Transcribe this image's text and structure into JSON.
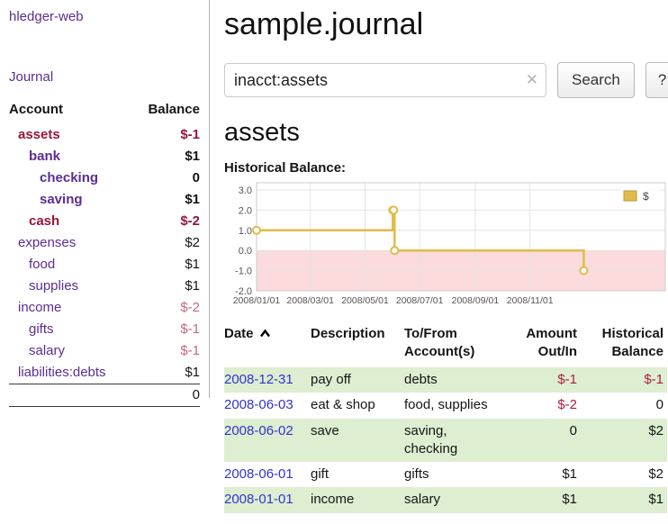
{
  "app": {
    "title": "hledger-web",
    "nav_journal": "Journal"
  },
  "sidebar": {
    "account_header": "Account",
    "balance_header": "Balance",
    "accounts": [
      {
        "name": "assets",
        "balance": "$-1",
        "indent": 0,
        "bold": true,
        "name_negative": true,
        "balance_color": "negative"
      },
      {
        "name": "bank",
        "balance": "$1",
        "indent": 1,
        "bold": true,
        "name_negative": false,
        "balance_color": "normal"
      },
      {
        "name": "checking",
        "balance": "0",
        "indent": 2,
        "bold": true,
        "name_negative": false,
        "balance_color": "normal"
      },
      {
        "name": "saving",
        "balance": "$1",
        "indent": 2,
        "bold": true,
        "name_negative": false,
        "balance_color": "normal"
      },
      {
        "name": "cash",
        "balance": "$-2",
        "indent": 1,
        "bold": true,
        "name_negative": true,
        "balance_color": "negative"
      },
      {
        "name": "expenses",
        "balance": "$2",
        "indent": 0,
        "bold": false,
        "name_negative": false,
        "balance_color": "normal"
      },
      {
        "name": "food",
        "balance": "$1",
        "indent": 1,
        "bold": false,
        "name_negative": false,
        "balance_color": "normal"
      },
      {
        "name": "supplies",
        "balance": "$1",
        "indent": 1,
        "bold": false,
        "name_negative": false,
        "balance_color": "normal"
      },
      {
        "name": "income",
        "balance": "$-2",
        "indent": 0,
        "bold": false,
        "name_negative": false,
        "balance_color": "negative_light"
      },
      {
        "name": "gifts",
        "balance": "$-1",
        "indent": 1,
        "bold": false,
        "name_negative": false,
        "balance_color": "negative_light"
      },
      {
        "name": "salary",
        "balance": "$-1",
        "indent": 1,
        "bold": false,
        "name_negative": false,
        "balance_color": "negative_light"
      },
      {
        "name": "liabilities:debts",
        "balance": "$1",
        "indent": 0,
        "bold": false,
        "name_negative": false,
        "balance_color": "normal"
      }
    ],
    "total": "0"
  },
  "main": {
    "title": "sample.journal",
    "account_heading": "assets"
  },
  "search": {
    "value": "inacct:assets",
    "placeholder": "",
    "clear_glyph": "✕",
    "button_label": "Search",
    "help_label": "?"
  },
  "chart_data": {
    "type": "line",
    "step": true,
    "title": "Historical Balance:",
    "xlim": [
      "2008-01-01",
      "2009-04-01"
    ],
    "ylim": [
      -2,
      3
    ],
    "y_ticks": [
      "3.0",
      "2.0",
      "1.0",
      "0.0",
      "-1.0",
      "-2.0"
    ],
    "x_ticks": [
      "2008/01/01",
      "2008/03/01",
      "2008/05/01",
      "2008/07/01",
      "2008/09/01",
      "2008/11/01"
    ],
    "grid": true,
    "legend_position": "top-right",
    "negative_region_fill": "#fbdbdb",
    "series": [
      {
        "name": "$",
        "color": "#e2bb49",
        "points": [
          [
            "2008-01-01",
            1
          ],
          [
            "2008-06-01",
            2
          ],
          [
            "2008-06-02",
            2
          ],
          [
            "2008-06-03",
            0
          ],
          [
            "2008-12-31",
            -1
          ]
        ]
      }
    ]
  },
  "register": {
    "columns": [
      {
        "line1": "Date",
        "line2": "",
        "align": "left",
        "sorted_ascending": true
      },
      {
        "line1": "Description",
        "line2": "",
        "align": "left"
      },
      {
        "line1": "To/From",
        "line2": "Account(s)",
        "align": "left"
      },
      {
        "line1": "Amount",
        "line2": "Out/In",
        "align": "right"
      },
      {
        "line1": "Historical",
        "line2": "Balance",
        "align": "right"
      }
    ],
    "rows": [
      {
        "date": "2008-12-31",
        "description": "pay off",
        "accounts": "debts",
        "amount": "$-1",
        "amount_negative": true,
        "balance": "$-1",
        "balance_negative": true,
        "shaded": true
      },
      {
        "date": "2008-06-03",
        "description": "eat & shop",
        "accounts": "food, supplies",
        "amount": "$-2",
        "amount_negative": true,
        "balance": "0",
        "balance_negative": false,
        "shaded": false
      },
      {
        "date": "2008-06-02",
        "description": "save",
        "accounts": "saving, checking",
        "amount": "0",
        "amount_negative": false,
        "balance": "$2",
        "balance_negative": false,
        "shaded": true
      },
      {
        "date": "2008-06-01",
        "description": "gift",
        "accounts": "gifts",
        "amount": "$1",
        "amount_negative": false,
        "balance": "$2",
        "balance_negative": false,
        "shaded": false
      },
      {
        "date": "2008-01-01",
        "description": "income",
        "accounts": "salary",
        "amount": "$1",
        "amount_negative": false,
        "balance": "$1",
        "balance_negative": false,
        "shaded": true
      }
    ]
  },
  "colors": {
    "link_purple": "#5c2d91",
    "date_link_blue": "#3333cc",
    "negative_dark": "#96163a",
    "negative_light": "#c4687e",
    "negative_table": "#b01e3c",
    "row_shade_green": "#ddeed1",
    "chart_line_gold": "#e2bb49",
    "chart_negative_fill": "#fbdbdb"
  }
}
